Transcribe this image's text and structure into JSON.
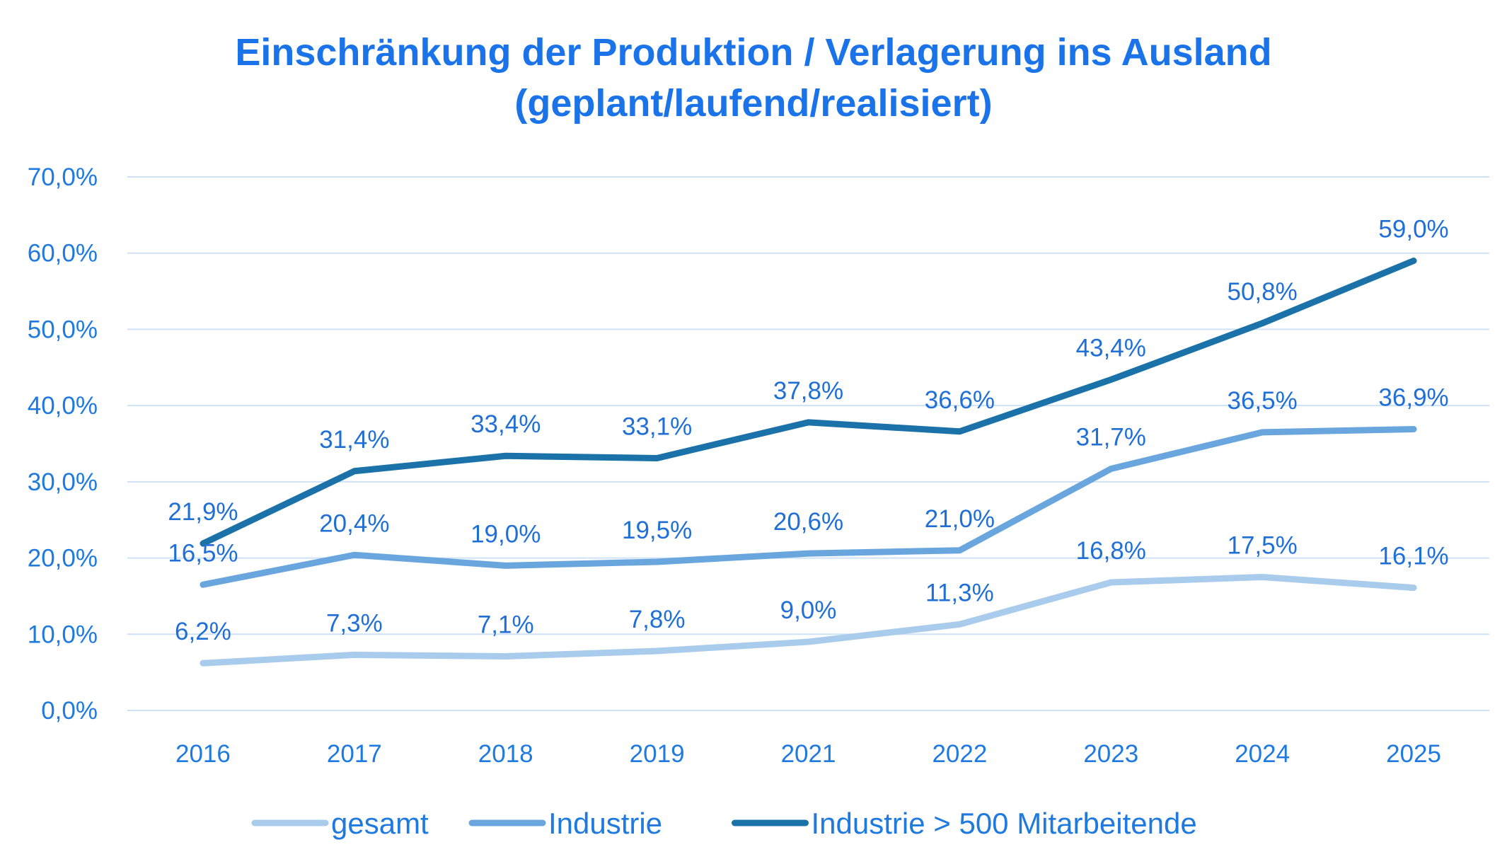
{
  "chart_data": {
    "type": "line",
    "title_line1": "Einschränkung der Produktion / Verlagerung ins Ausland",
    "title_line2": "(geplant/laufend/realisiert)",
    "categories": [
      "2016",
      "2017",
      "2018",
      "2019",
      "2021",
      "2022",
      "2023",
      "2024",
      "2025"
    ],
    "ylim": [
      0,
      70
    ],
    "y_ticks": [
      "0,0%",
      "10,0%",
      "20,0%",
      "30,0%",
      "40,0%",
      "50,0%",
      "60,0%",
      "70,0%"
    ],
    "grid": true,
    "legend_position": "bottom",
    "series": [
      {
        "name": "gesamt",
        "color": "#a9cbec",
        "values": [
          6.2,
          7.3,
          7.1,
          7.8,
          9.0,
          11.3,
          16.8,
          17.5,
          16.1
        ],
        "labels": [
          "6,2%",
          "7,3%",
          "7,1%",
          "7,8%",
          "9,0%",
          "11,3%",
          "16,8%",
          "17,5%",
          "16,1%"
        ]
      },
      {
        "name": "Industrie",
        "color": "#6aa6de",
        "values": [
          16.5,
          20.4,
          19.0,
          19.5,
          20.6,
          21.0,
          31.7,
          36.5,
          36.9
        ],
        "labels": [
          "16,5%",
          "20,4%",
          "19,0%",
          "19,5%",
          "20,6%",
          "21,0%",
          "31,7%",
          "36,5%",
          "36,9%"
        ]
      },
      {
        "name": "Industrie > 500 Mitarbeitende",
        "color": "#1a72a8",
        "values": [
          21.9,
          31.4,
          33.4,
          33.1,
          37.8,
          36.6,
          43.4,
          50.8,
          59.0
        ],
        "labels": [
          "21,9%",
          "31,4%",
          "33,4%",
          "33,1%",
          "37,8%",
          "36,6%",
          "43,4%",
          "50,8%",
          "59,0%"
        ]
      }
    ]
  }
}
